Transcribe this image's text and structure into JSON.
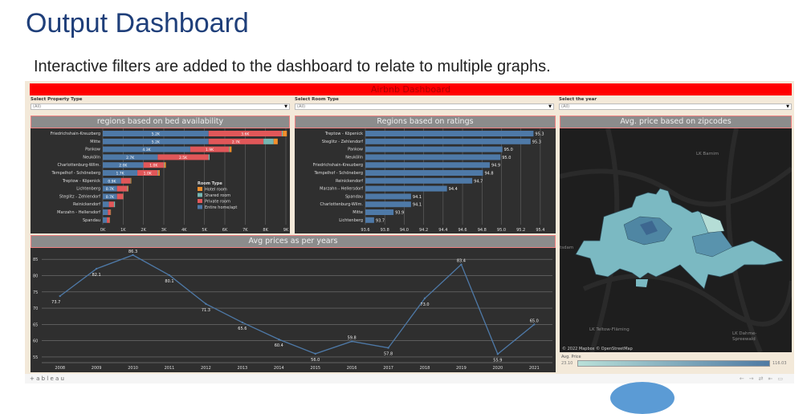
{
  "slide": {
    "title": "Output Dashboard",
    "subtitle": "Interactive filters are added to the dashboard to relate to multiple graphs."
  },
  "dashboard": {
    "title": "Airbnb Dashboard",
    "filters": [
      {
        "label": "Select Property Type",
        "value": "(All)"
      },
      {
        "label": "Select Room Type",
        "value": "(All)"
      },
      {
        "label": "Select the year",
        "value": "(All)"
      }
    ],
    "footer_logo": "+ a b l e a u",
    "nav_icons": [
      "back-icon",
      "forward-icon",
      "share-icon",
      "reset-icon",
      "fullscreen-icon"
    ]
  },
  "chart_data": [
    {
      "type": "bar",
      "stacked": true,
      "orientation": "horizontal",
      "title": "regions based on bed availability",
      "categories": [
        "Friedrichshain-Kreuzberg",
        "Mitte",
        "Pankow",
        "Neukölln",
        "Charlottenburg-Wilm.",
        "Tempelhof - Schöneberg",
        "Treptow - Köpenick",
        "Lichtenberg",
        "Steglitz - Zehlendorf",
        "Reinickendorf",
        "Marzahn - Hellersdorf",
        "Spandau"
      ],
      "series": [
        {
          "name": "Entire home/apt",
          "color": "#4e79a7",
          "values": [
            5200,
            5200,
            4300,
            2700,
            2000,
            1700,
            900,
            700,
            700,
            300,
            250,
            200
          ],
          "labels": [
            "5.2K",
            "5.2K",
            "4.3K",
            "2.7K",
            "2.0K",
            "1.7K",
            "0.9K",
            "0.7K",
            "0.7K",
            "",
            "",
            ""
          ]
        },
        {
          "name": "Private room",
          "color": "#e15759",
          "values": [
            3600,
            2700,
            1900,
            2500,
            1000,
            1000,
            450,
            500,
            300,
            250,
            120,
            120
          ],
          "labels": [
            "3.6K",
            "2.7K",
            "1.9K",
            "2.5K",
            "1.0K",
            "1.0K",
            "",
            "",
            "",
            "",
            "",
            ""
          ]
        },
        {
          "name": "Shared room",
          "color": "#76b7b2",
          "values": [
            50,
            500,
            30,
            50,
            30,
            30,
            20,
            30,
            10,
            50,
            10,
            10
          ]
        },
        {
          "name": "Hotel room",
          "color": "#f28e2b",
          "values": [
            200,
            200,
            100,
            0,
            70,
            70,
            30,
            30,
            10,
            0,
            20,
            20
          ]
        }
      ],
      "xticks": [
        "0K",
        "1K",
        "2K",
        "3K",
        "4K",
        "5K",
        "6K",
        "7K",
        "8K",
        "9K"
      ],
      "xlim": [
        0,
        9000
      ],
      "legend_title": "Room Type",
      "legend_placement": "bottom-right",
      "grid": true
    },
    {
      "type": "bar",
      "orientation": "horizontal",
      "title": "Regions based on ratings",
      "categories": [
        "Treptow - Köpenick",
        "Steglitz - Zehlendorf",
        "Pankow",
        "Neukölln",
        "Friedrichshain-Kreuzberg",
        "Tempelhof - Schöneberg",
        "Reinickendorf",
        "Marzahn - Hellersdorf",
        "Spandau",
        "Charlottenburg-Wilm.",
        "Mitte",
        "Lichtenberg"
      ],
      "values": [
        95.33,
        95.3,
        95.01,
        94.99,
        94.88,
        94.81,
        94.7,
        94.44,
        94.07,
        94.07,
        93.89,
        93.69
      ],
      "labels": [
        "95.3",
        "95.3",
        "95.0",
        "95.0",
        "94.9",
        "94.8",
        "94.7",
        "94.4",
        "94.1",
        "94.1",
        "93.9",
        "93.7"
      ],
      "xticks": [
        "93.6",
        "93.8",
        "94.0",
        "94.2",
        "94.4",
        "94.6",
        "94.8",
        "95.0",
        "95.2",
        "95.4"
      ],
      "xlim": [
        93.6,
        95.5
      ],
      "color": "#4e79a7",
      "grid": true
    },
    {
      "type": "line",
      "title": "Avg prices as per years",
      "x": [
        "2008",
        "2009",
        "2010",
        "2011",
        "2012",
        "2013",
        "2014",
        "2015",
        "2016",
        "2017",
        "2018",
        "2019",
        "2020",
        "2021"
      ],
      "values": [
        73.7,
        82.1,
        86.3,
        80.1,
        71.3,
        65.6,
        60.4,
        56.0,
        59.8,
        57.8,
        73.0,
        83.4,
        55.9,
        65.0
      ],
      "labels": [
        "73.7",
        "82.1",
        "86.3",
        "80.1",
        "71.3",
        "65.6",
        "60.4",
        "56.0",
        "59.8",
        "57.8",
        "73.0",
        "83.4",
        "55.9",
        "65.0"
      ],
      "yticks": [
        "55",
        "60",
        "65",
        "70",
        "75",
        "80",
        "85"
      ],
      "ylim": [
        54,
        88
      ],
      "color": "#4e79a7",
      "grid": true
    },
    {
      "type": "heatmap",
      "subtype": "choropleth-map",
      "title": "Avg. price based on zipcodes",
      "map_labels": [
        "LK Barnim",
        "tsdam",
        "LK Teltow-Fläming",
        "LK Dahme-\nSpreewald"
      ],
      "attribution": "© 2022 Mapbox  © OpenStreetMap",
      "legend_title": "Avg. Price",
      "color_min": "23.10",
      "color_max": "116.03",
      "color_range": [
        "#b9e0d8",
        "#4e7aa3"
      ]
    }
  ]
}
